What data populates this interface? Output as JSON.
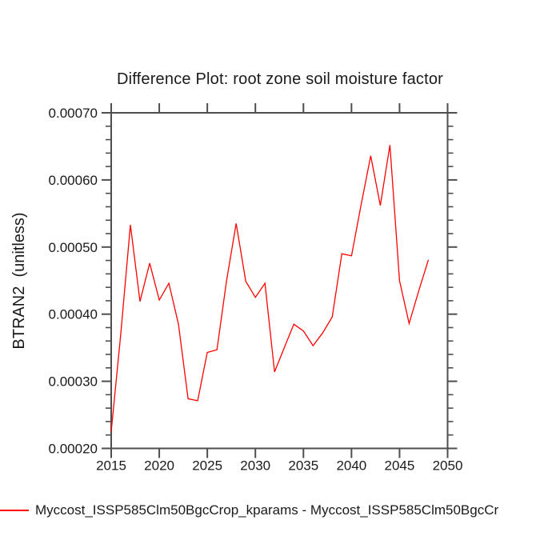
{
  "title": "Difference Plot: root zone soil moisture factor",
  "legend": {
    "label": "Myccost_ISSP585Clm50BgcCrop_kparams - Myccost_ISSP585Clm50BgcCr"
  },
  "chart_data": {
    "type": "line",
    "title": "Difference Plot: root zone soil moisture factor",
    "xlabel": "",
    "ylabel": "BTRAN2  (unitless)",
    "x": [
      2015,
      2016,
      2017,
      2018,
      2019,
      2020,
      2021,
      2022,
      2023,
      2024,
      2025,
      2026,
      2027,
      2028,
      2029,
      2030,
      2031,
      2032,
      2033,
      2034,
      2035,
      2036,
      2037,
      2038,
      2039,
      2040,
      2041,
      2042,
      2043,
      2044,
      2045,
      2046,
      2047,
      2048
    ],
    "series": [
      {
        "name": "Myccost_ISSP585Clm50BgcCrop_kparams - Myccost_ISSP585Clm50BgcCr",
        "color": "#ff0000",
        "values": [
          0.000225,
          0.000371,
          0.000533,
          0.000419,
          0.000476,
          0.000421,
          0.000446,
          0.000385,
          0.000274,
          0.000271,
          0.000343,
          0.000347,
          0.00045,
          0.000535,
          0.000449,
          0.000425,
          0.000446,
          0.000314,
          0.00035,
          0.000385,
          0.000375,
          0.000353,
          0.000372,
          0.000396,
          0.00049,
          0.000487,
          0.000563,
          0.000636,
          0.000562,
          0.000652,
          0.00045,
          0.000386,
          0.000435,
          0.000481
        ]
      }
    ],
    "xlim": [
      2015,
      2050
    ],
    "ylim": [
      0.0002,
      0.0007
    ],
    "x_major_ticks": [
      2015,
      2020,
      2025,
      2030,
      2035,
      2040,
      2045,
      2050
    ],
    "x_tick_labels": [
      "2015",
      "2020",
      "2025",
      "2030",
      "2035",
      "2040",
      "2045",
      "2050"
    ],
    "y_major_ticks": [
      0.0002,
      0.0003,
      0.0004,
      0.0005,
      0.0006,
      0.0007
    ],
    "y_tick_labels": [
      "0.00020",
      "0.00030",
      "0.00040",
      "0.00050",
      "0.00060",
      "0.00070"
    ],
    "y_minor_step": 2e-05,
    "grid": false,
    "legend_position": "bottom-left",
    "axis_color": "#4e4e4e",
    "text_color": "#1a1a1a"
  }
}
